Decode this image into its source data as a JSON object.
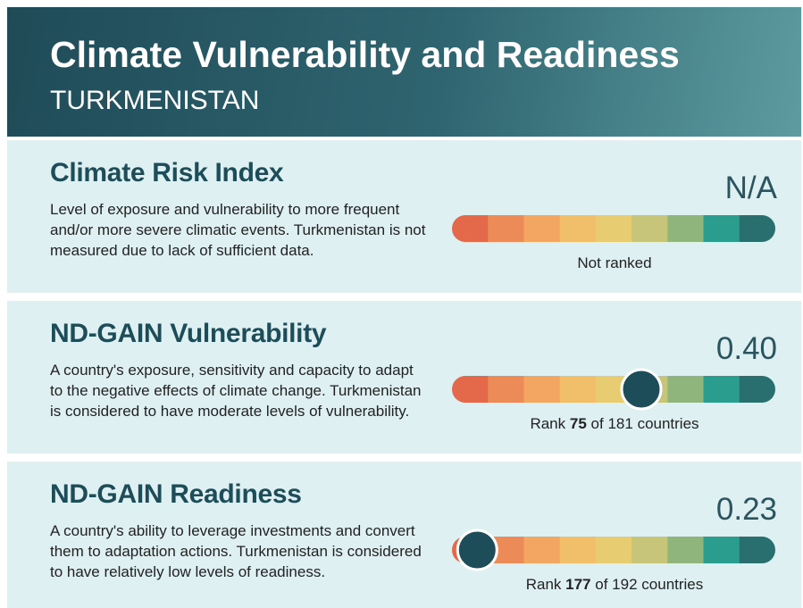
{
  "header": {
    "title": "Climate Vulnerability and Readiness",
    "subtitle": "TURKMENISTAN"
  },
  "sections": [
    {
      "title": "Climate Risk Index",
      "description": "Level of exposure and vulnerability to more frequent and/or more severe climatic events. Turkmenistan is not measured due to lack of sufficient data.",
      "value": "N/A",
      "status": "Not ranked"
    },
    {
      "title": "ND-GAIN Vulnerability",
      "description": "A country's exposure, sensitivity and capacity to adapt to the negative effects of climate change. Turkmenistan is considered to have moderate levels of vulnerability.",
      "value": "0.40",
      "rank_prefix": "Rank",
      "rank": 75,
      "rank_of": "of",
      "total": 181,
      "rank_suffix": "countries"
    },
    {
      "title": "ND-GAIN Readiness",
      "description": "A country's ability to leverage investments and convert them to adaptation actions. Turkmenistan is considered to have relatively low levels of readiness.",
      "value": "0.23",
      "rank_prefix": "Rank",
      "rank": 177,
      "rank_of": "of",
      "total": 192,
      "rank_suffix": "countries"
    }
  ]
}
